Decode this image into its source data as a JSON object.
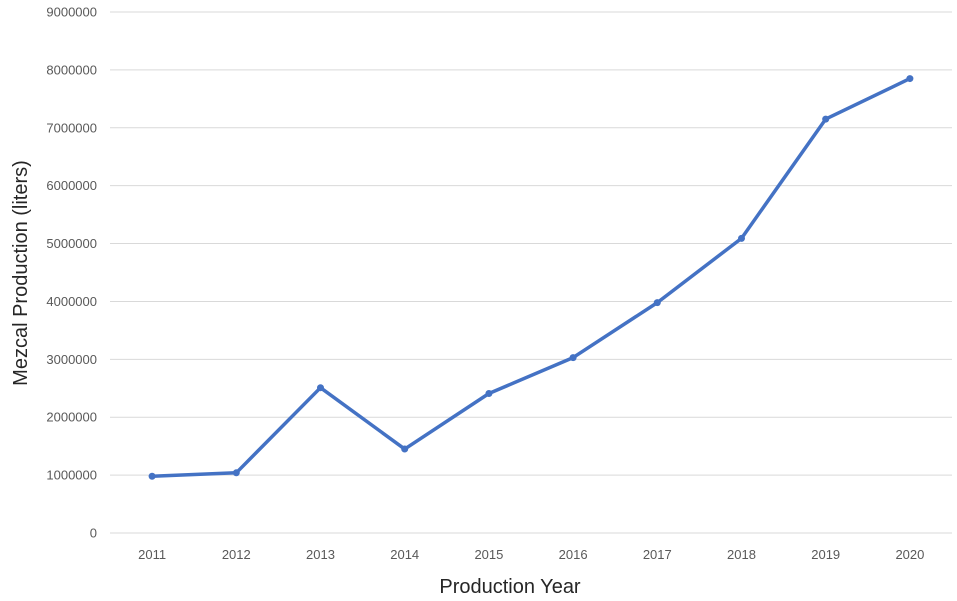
{
  "chart_data": {
    "type": "line",
    "title": "",
    "xlabel": "Production Year",
    "ylabel": "Mezcal Production (liters)",
    "categories": [
      "2011",
      "2012",
      "2013",
      "2014",
      "2015",
      "2016",
      "2017",
      "2018",
      "2019",
      "2020"
    ],
    "series": [
      {
        "values": [
          980000,
          1040000,
          2510000,
          1450000,
          2410000,
          3030000,
          3980000,
          5090000,
          7150000,
          7850000
        ]
      }
    ],
    "ylim": [
      0,
      9000000
    ],
    "yticks": [
      "0",
      "1000000",
      "2000000",
      "3000000",
      "4000000",
      "5000000",
      "6000000",
      "7000000",
      "8000000",
      "9000000"
    ],
    "grid": "horizontal",
    "legend": "none",
    "colors": {
      "series": "#4472c4",
      "grid": "#d9d9d9",
      "tick_text": "#595959"
    }
  }
}
